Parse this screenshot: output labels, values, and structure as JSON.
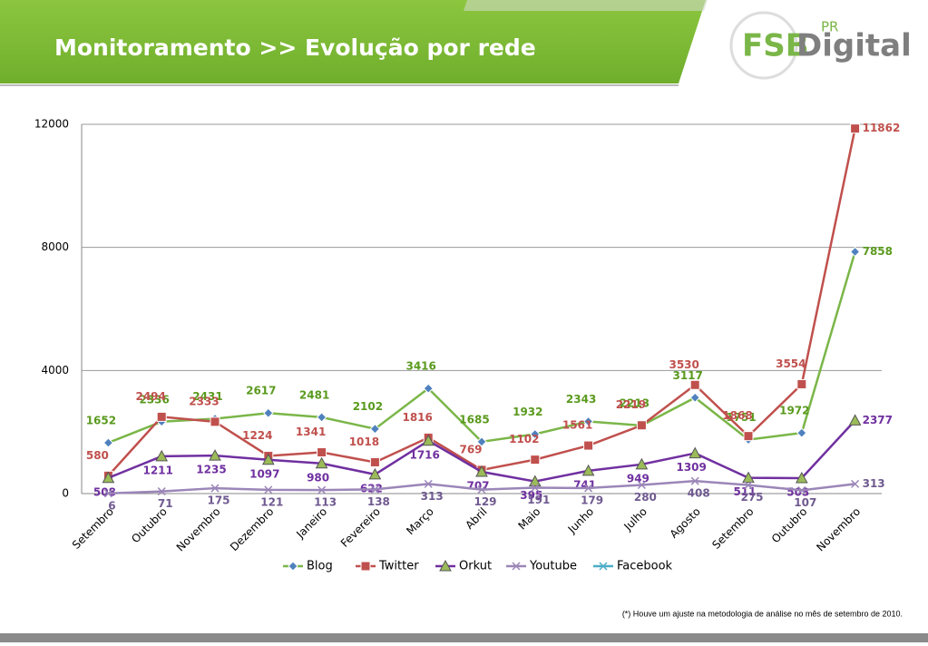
{
  "header": {
    "title": "Monitoramento >> Evolução por rede",
    "logo": [
      "FSB",
      "PR",
      "Digital"
    ]
  },
  "chart_data": {
    "type": "line",
    "categories": [
      "Setembro",
      "Outubro",
      "Novembro",
      "Dezembro",
      "Janeiro",
      "Fevereiro",
      "Março",
      "Abril",
      "Maio",
      "Junho",
      "Julho",
      "Agosto",
      "Setembro",
      "Outubro",
      "Novembro"
    ],
    "series": [
      {
        "name": "Blog",
        "color": "#7ab648",
        "marker": "diamond",
        "label_color": "#5a9a1e",
        "values": [
          1652,
          2336,
          2431,
          2617,
          2481,
          2102,
          3416,
          1685,
          1932,
          2343,
          2213,
          3117,
          1751,
          1972,
          7858
        ]
      },
      {
        "name": "Twitter",
        "color": "#c0504d",
        "marker": "square",
        "label_color": "#c0504d",
        "values": [
          580,
          2494,
          2333,
          1224,
          1341,
          1018,
          1816,
          769,
          1102,
          1561,
          2219,
          3530,
          1868,
          3554,
          11862
        ]
      },
      {
        "name": "Orkut",
        "color": "#7030a0",
        "marker": "triangle",
        "label_color": "#7030a0",
        "values": [
          508,
          1211,
          1235,
          1097,
          980,
          622,
          1716,
          707,
          395,
          741,
          949,
          1309,
          511,
          503,
          2377
        ]
      },
      {
        "name": "Youtube",
        "color": "#9b86b8",
        "marker": "x",
        "label_color": "#6f5a90",
        "values": [
          6,
          71,
          175,
          121,
          113,
          138,
          313,
          129,
          191,
          179,
          280,
          408,
          275,
          107,
          313
        ]
      },
      {
        "name": "Facebook",
        "color": "#4bacc6",
        "marker": "star",
        "label_color": "#4bacc6",
        "values": [
          null,
          null,
          null,
          null,
          null,
          null,
          null,
          null,
          null,
          null,
          null,
          null,
          null,
          null,
          null
        ]
      }
    ],
    "ylim": [
      0,
      12000
    ],
    "yticks": [
      0,
      4000,
      8000,
      12000
    ],
    "grid": true,
    "legend": "bottom"
  },
  "footnote": "(*) Houve um ajuste na metodologia de análise no mês de setembro de 2010."
}
